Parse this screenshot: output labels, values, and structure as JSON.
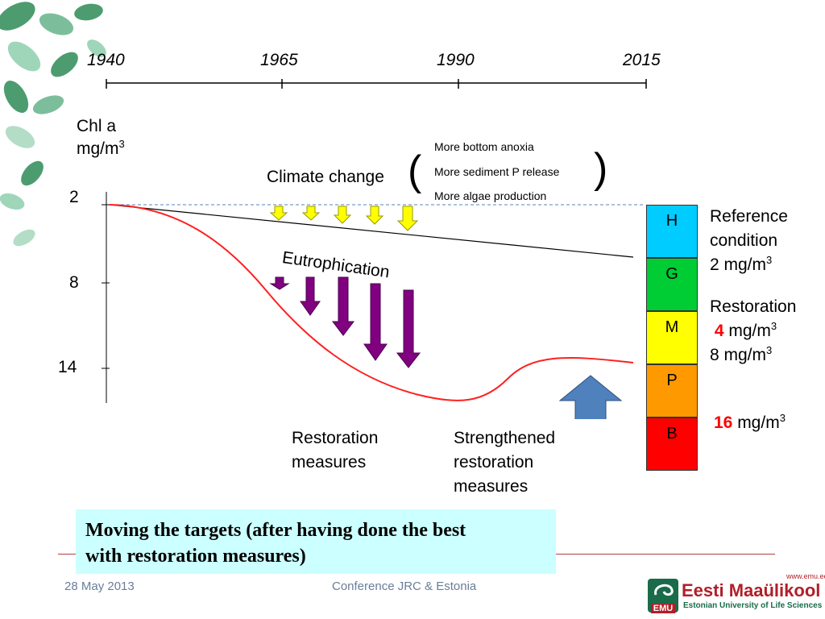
{
  "timeline": {
    "years": [
      "1940",
      "1965",
      "1990",
      "2015"
    ]
  },
  "y_axis": {
    "label_line1": "Chl a",
    "label_line2": "mg/m",
    "label_sup": "3",
    "ticks": [
      "2",
      "8",
      "14"
    ]
  },
  "climate": {
    "label": "Climate change",
    "open_paren": "(",
    "close_paren": ")",
    "effects": [
      "More bottom anoxia",
      "More sediment P release",
      "More algae production"
    ]
  },
  "eutrophication_label": "Eutrophication",
  "status_classes": [
    {
      "code": "H",
      "color": "#00ccff"
    },
    {
      "code": "G",
      "color": "#00cc33"
    },
    {
      "code": "M",
      "color": "#ffff00"
    },
    {
      "code": "P",
      "color": "#ff9900"
    },
    {
      "code": "B",
      "color": "#ff0000"
    }
  ],
  "reference": {
    "line1": "Reference",
    "line2": "condition",
    "line3": "2 mg/m",
    "sup": "3"
  },
  "restoration_targets": {
    "title": "Restoration",
    "value1": "4",
    "unit1": " mg/m",
    "sup1": "3",
    "line3": "8 mg/m",
    "sup3": "3",
    "value2": "16",
    "unit2": " mg/m",
    "sup2": "3"
  },
  "measures": {
    "restoration_line1": "Restoration",
    "restoration_line2": "measures",
    "strengthened_line1": "Strengthened",
    "strengthened_line2": "restoration",
    "strengthened_line3": "measures"
  },
  "banner": {
    "line1": "Moving the targets (after having done the best",
    "line2": "with restoration measures)"
  },
  "footer": {
    "date": "28 May 2013",
    "conference": "Conference JRC & Estonia"
  },
  "logo": {
    "url": "www.emu.ee",
    "name": "Eesti Maaülikool",
    "subtitle": "Estonian University of Life Sciences",
    "abbr": "EMU"
  },
  "colors": {
    "curve": "#ff2020",
    "eutro_arrow": "#800080",
    "climate_arrow": "#ffff00",
    "measure_arrow": "#4f81bd",
    "banner_bg": "#ccffff",
    "leaf": "#2e8b57"
  }
}
